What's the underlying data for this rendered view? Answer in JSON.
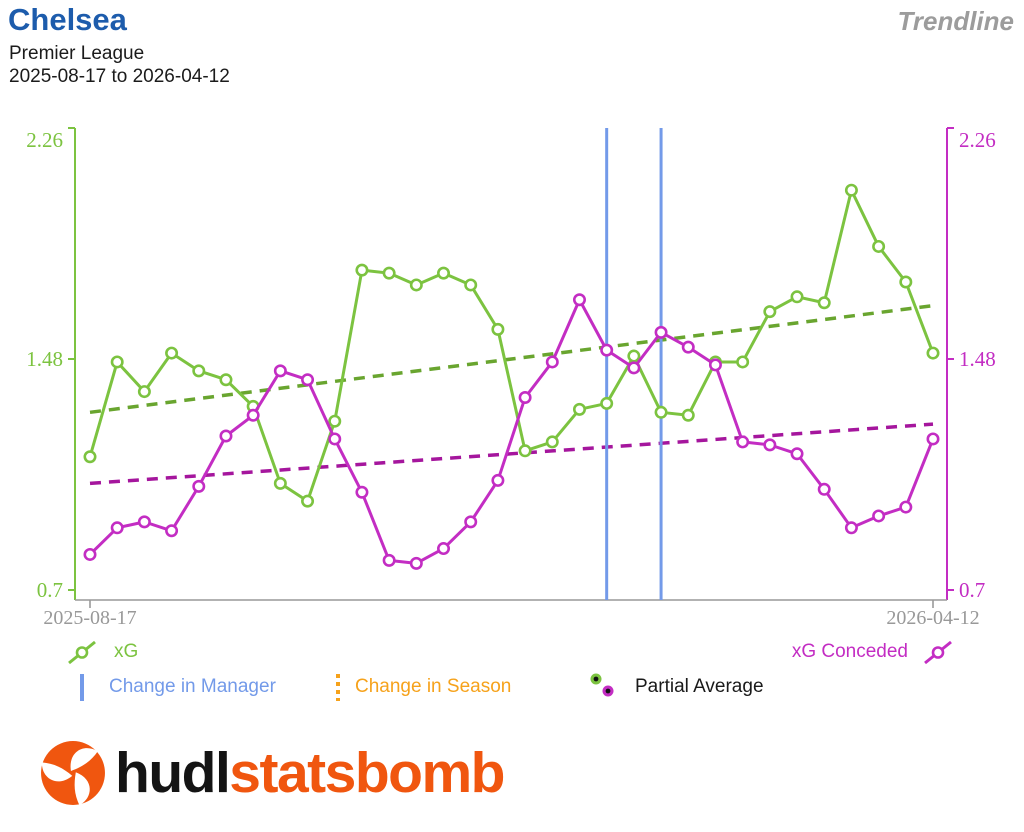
{
  "header": {
    "title": "Chelsea",
    "competition": "Premier League",
    "date_range": "2025-08-17 to 2026-04-12",
    "view_label": "Trendline"
  },
  "chart_data": {
    "type": "line",
    "title": "Chelsea xG / xG Conceded Trendline",
    "x_axis": {
      "tick_labels": [
        "2025-08-17",
        "2026-04-12"
      ],
      "num_matches": 32
    },
    "ylim": [
      0.7,
      2.26
    ],
    "y_ticks": [
      {
        "label": "2.26",
        "value": 2.26
      },
      {
        "label": "1.48",
        "value": 1.48
      },
      {
        "label": "0.7",
        "value": 0.7
      }
    ],
    "y_axis_left_color": "#7cc340",
    "y_axis_right_color": "#c32dc3",
    "grid": false,
    "legend_position": "bottom",
    "series": [
      {
        "name": "xG",
        "color": "#7cc340",
        "values": [
          1.15,
          1.47,
          1.37,
          1.5,
          1.44,
          1.41,
          1.32,
          1.06,
          1.0,
          1.27,
          1.78,
          1.77,
          1.73,
          1.77,
          1.73,
          1.58,
          1.17,
          1.2,
          1.31,
          1.33,
          1.49,
          1.3,
          1.29,
          1.47,
          1.47,
          1.64,
          1.69,
          1.67,
          2.05,
          1.86,
          1.74,
          1.5
        ]
      },
      {
        "name": "xG Conceded",
        "color": "#c32dc3",
        "values": [
          0.82,
          0.91,
          0.93,
          0.9,
          1.05,
          1.22,
          1.29,
          1.44,
          1.41,
          1.21,
          1.03,
          0.8,
          0.79,
          0.84,
          0.93,
          1.07,
          1.35,
          1.47,
          1.68,
          1.51,
          1.45,
          1.57,
          1.52,
          1.46,
          1.2,
          1.19,
          1.16,
          1.04,
          0.91,
          0.95,
          0.98,
          1.21
        ]
      }
    ],
    "trendlines": [
      {
        "series": "xG",
        "color": "#69a52f",
        "start_value": 1.3,
        "end_value": 1.66
      },
      {
        "series": "xG Conceded",
        "color": "#a5169d",
        "start_value": 1.06,
        "end_value": 1.26
      }
    ],
    "manager_changes": {
      "color": "#739ae9",
      "match_positions": [
        19,
        21
      ]
    }
  },
  "legend": {
    "xg_label": "xG",
    "xg_conceded_label": "xG Conceded",
    "manager_label": "Change in Manager",
    "season_label": "Change in Season",
    "partial_avg_label": "Partial Average"
  },
  "footer": {
    "logo_hudl": "hudl",
    "logo_statsbomb": "statsbomb"
  },
  "colors": {
    "title_blue": "#1d5cac",
    "view_label_gray": "#9c9c9c",
    "axis_gray": "#999999",
    "xg_green": "#7cc340",
    "xg_trend_green": "#69a52f",
    "xg_conceded_magenta": "#c32dc3",
    "xg_conceded_trend_magenta": "#a5169d",
    "manager_blue": "#739ae9",
    "season_orange": "#f6a21b",
    "logo_orange": "#f0560f"
  }
}
